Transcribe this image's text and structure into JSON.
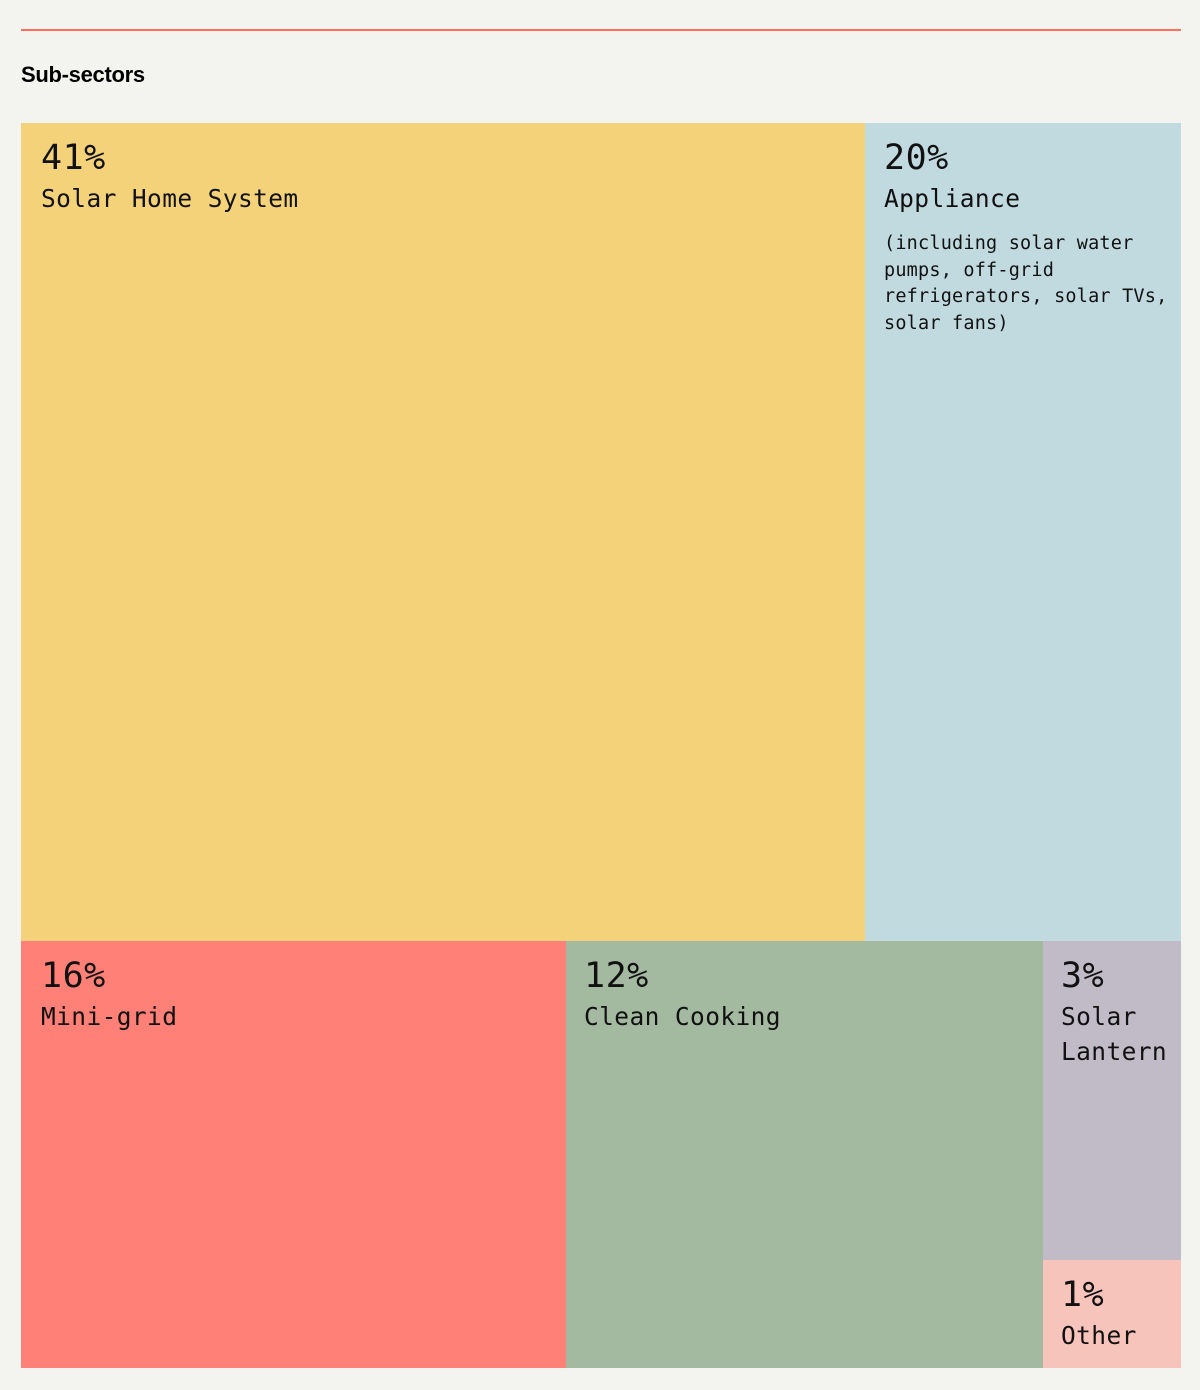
{
  "heading": "Sub-sectors",
  "chart_data": {
    "type": "treemap",
    "title": "Sub-sectors",
    "unit": "%",
    "segments": [
      {
        "key": "shs",
        "label": "Solar Home System",
        "pct_label": "41%",
        "value": 41,
        "color": "#f4d279",
        "note": ""
      },
      {
        "key": "appliance",
        "label": "Appliance",
        "pct_label": "20%",
        "value": 20,
        "color": "#c1dadf",
        "note": "(including solar water pumps, off-grid refrigerators, solar TVs, solar fans)"
      },
      {
        "key": "minigrid",
        "label": "Mini-grid",
        "pct_label": "16%",
        "value": 16,
        "color": "#ff8076",
        "note": ""
      },
      {
        "key": "cooking",
        "label": "Clean Cooking",
        "pct_label": "12%",
        "value": 12,
        "color": "#a3b9a0",
        "note": ""
      },
      {
        "key": "lantern",
        "label": "Solar\nLantern",
        "pct_label": "3%",
        "value": 3,
        "color": "#c1bbc8",
        "note": ""
      },
      {
        "key": "other",
        "label": "Other",
        "pct_label": "1%",
        "value": 1,
        "color": "#f7c4bc",
        "note": ""
      }
    ]
  }
}
